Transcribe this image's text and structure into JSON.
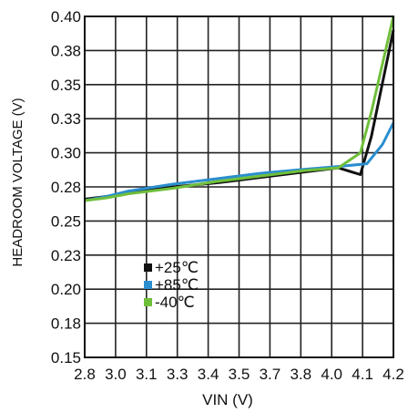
{
  "chart_data": {
    "type": "line",
    "xlabel": "VIN (V)",
    "ylabel": "HEADROOM VOLTAGE (V)",
    "xlim": [
      2.8,
      4.2
    ],
    "ylim": [
      0.15,
      0.4
    ],
    "x_ticks": [
      "2.8",
      "3.0",
      "3.1",
      "3.3",
      "3.4",
      "3.5",
      "3.7",
      "3.8",
      "4.0",
      "4.1",
      "4.2"
    ],
    "y_ticks": [
      "0.40",
      "0.38",
      "0.35",
      "0.33",
      "0.30",
      "0.28",
      "0.25",
      "0.23",
      "0.20",
      "0.18",
      "0.15"
    ],
    "grid": true,
    "legend_position": "lower-center",
    "legend": [
      "+25℃",
      "+85℃",
      "-40℃"
    ],
    "series": [
      {
        "name": "+25℃",
        "color": "#111111",
        "x": [
          2.8,
          2.9,
          3.0,
          3.2,
          3.4,
          3.6,
          3.8,
          3.95,
          4.05,
          4.1,
          4.2
        ],
        "y": [
          0.266,
          0.268,
          0.271,
          0.275,
          0.278,
          0.282,
          0.286,
          0.289,
          0.284,
          0.312,
          0.39
        ]
      },
      {
        "name": "+85℃",
        "color": "#2b8ecf",
        "x": [
          2.8,
          2.9,
          3.0,
          3.2,
          3.4,
          3.6,
          3.8,
          3.95,
          4.08,
          4.15,
          4.2
        ],
        "y": [
          0.265,
          0.268,
          0.272,
          0.277,
          0.281,
          0.285,
          0.288,
          0.29,
          0.292,
          0.306,
          0.322
        ]
      },
      {
        "name": "-40℃",
        "color": "#6fbf3b",
        "x": [
          2.8,
          2.9,
          3.0,
          3.2,
          3.4,
          3.6,
          3.8,
          3.95,
          4.05,
          4.1,
          4.2
        ],
        "y": [
          0.265,
          0.267,
          0.27,
          0.274,
          0.279,
          0.283,
          0.287,
          0.289,
          0.3,
          0.33,
          0.4
        ]
      }
    ]
  }
}
